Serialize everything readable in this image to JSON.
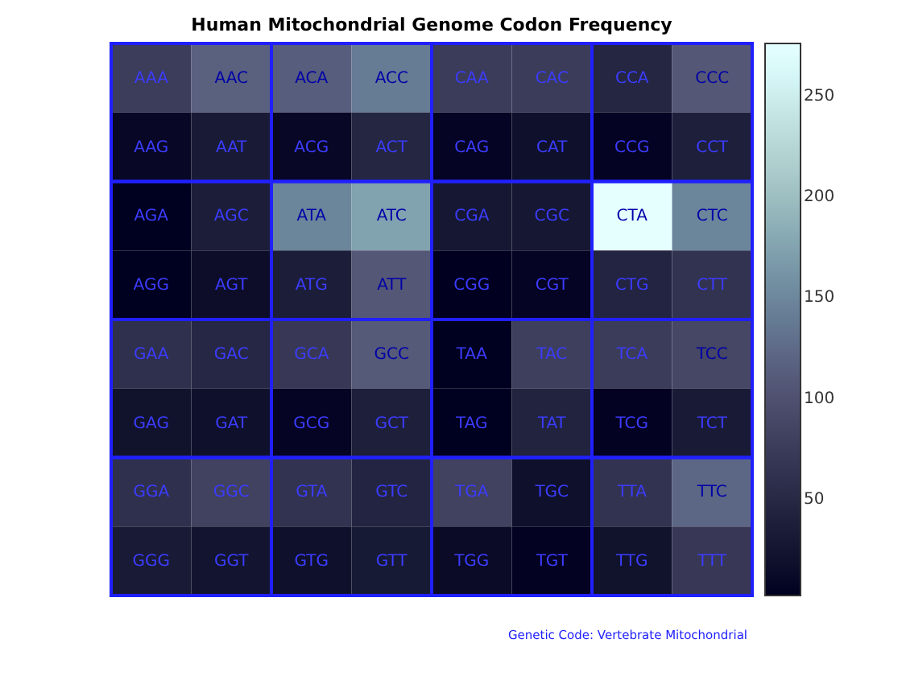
{
  "chart_data": {
    "type": "heatmap",
    "title": "Human Mitochondrial Genome Codon Frequency",
    "categories": [
      null,
      null,
      null,
      null,
      null,
      null,
      null,
      null
    ],
    "y_categories": [
      null,
      null,
      null,
      null,
      null,
      null,
      null,
      null
    ],
    "cells": [
      [
        76,
        116,
        113,
        140,
        75,
        75,
        47,
        107
      ],
      [
        10,
        32,
        10,
        47,
        8,
        19,
        7,
        38
      ],
      [
        2,
        36,
        148,
        174,
        28,
        28,
        276,
        148
      ],
      [
        2,
        15,
        36,
        107,
        4,
        8,
        45,
        64
      ],
      [
        60,
        49,
        71,
        110,
        2,
        79,
        75,
        88
      ],
      [
        21,
        19,
        8,
        38,
        2,
        43,
        6,
        32
      ],
      [
        60,
        82,
        64,
        45,
        82,
        19,
        64,
        122
      ],
      [
        32,
        24,
        19,
        30,
        13,
        6,
        21,
        71
      ]
    ],
    "cell_labels": [
      [
        "AAA",
        "AAC",
        "ACA",
        "ACC",
        "CAA",
        "CAC",
        "CCA",
        "CCC"
      ],
      [
        "AAG",
        "AAT",
        "ACG",
        "ACT",
        "CAG",
        "CAT",
        "CCG",
        "CCT"
      ],
      [
        "AGA",
        "AGC",
        "ATA",
        "ATC",
        "CGA",
        "CGC",
        "CTA",
        "CTC"
      ],
      [
        "AGG",
        "AGT",
        "ATG",
        "ATT",
        "CGG",
        "CGT",
        "CTG",
        "CTT"
      ],
      [
        "GAA",
        "GAC",
        "GCA",
        "GCC",
        "TAA",
        "TAC",
        "TCA",
        "TCC"
      ],
      [
        "GAG",
        "GAT",
        "GCG",
        "GCT",
        "TAG",
        "TAT",
        "TCG",
        "TCT"
      ],
      [
        "GGA",
        "GGC",
        "GTA",
        "GTC",
        "TGA",
        "TGC",
        "TTA",
        "TTC"
      ],
      [
        "GGG",
        "GGT",
        "GTG",
        "GTT",
        "TGG",
        "TGT",
        "TTG",
        "TTT"
      ]
    ],
    "clim": [
      2,
      276
    ],
    "cticks": [
      50,
      100,
      150,
      200,
      250
    ],
    "annotations": [
      "Genetic Code: Vertebrate Mitochondrial"
    ]
  }
}
